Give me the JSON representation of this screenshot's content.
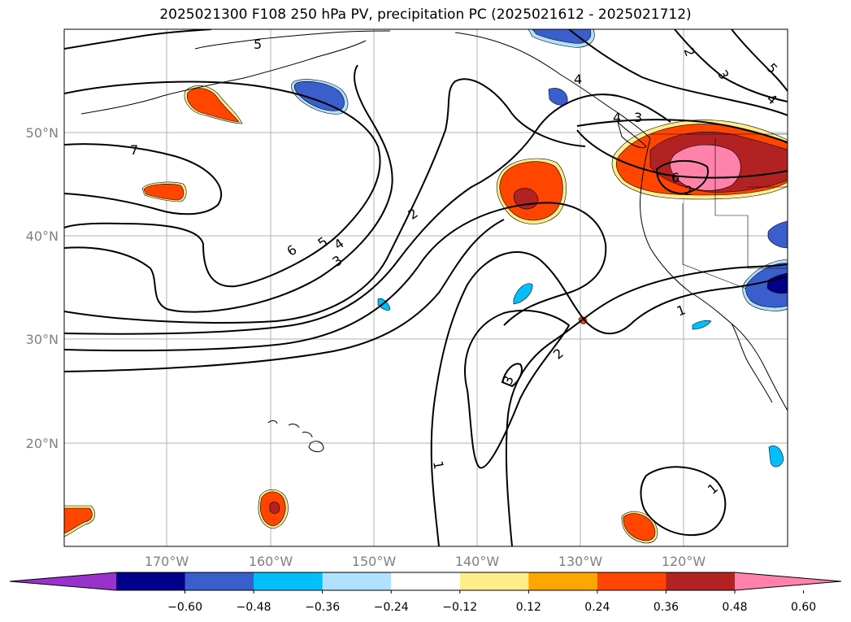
{
  "title": "2025021300 F108 250 hPa PV, precipitation PC (2025021612 - 2025021712)",
  "axes": {
    "lat_labels": [
      "50°N",
      "40°N",
      "30°N",
      "20°N"
    ],
    "lon_labels": [
      "170°W",
      "160°W",
      "150°W",
      "140°W",
      "130°W",
      "120°W"
    ]
  },
  "colorbar": {
    "ticks": [
      "−0.60",
      "−0.48",
      "−0.36",
      "−0.24",
      "−0.12",
      "0.12",
      "0.24",
      "0.36",
      "0.48",
      "0.60"
    ],
    "colors": [
      "#9932cc",
      "#00008b",
      "#3a5fcd",
      "#00bfff",
      "#b0e2ff",
      "#ffffff",
      "#ffec8b",
      "#ffa500",
      "#ff4500",
      "#b22222",
      "#ff82ab"
    ]
  },
  "contour_labels": [
    "7",
    "6",
    "5",
    "4",
    "3",
    "2",
    "1",
    "2",
    "3",
    "4",
    "5",
    "6",
    "3",
    "2",
    "1",
    "1",
    "4",
    "2",
    "3",
    "5",
    "4"
  ]
}
